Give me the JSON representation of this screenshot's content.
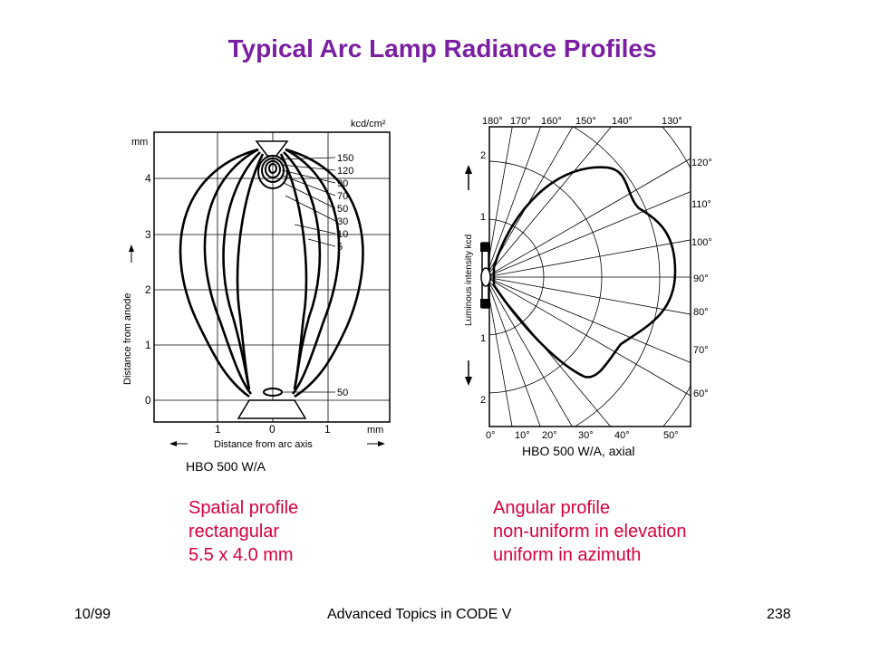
{
  "slide": {
    "title": "Typical Arc Lamp Radiance Profiles"
  },
  "spatial_figure": {
    "units_label": "kcd/cm²",
    "y_unit": "mm",
    "y_ticks": [
      "4",
      "3",
      "2",
      "1",
      "0"
    ],
    "y_label": "Distance from anode",
    "x_ticks": [
      "1",
      "0",
      "1"
    ],
    "x_unit": "mm",
    "x_label": "Distance from arc axis",
    "contour_labels": [
      "150",
      "120",
      "90",
      "70",
      "50",
      "30",
      "10",
      "5"
    ],
    "bottom_contour_label": "50",
    "caption": "HBO 500 W/A"
  },
  "angular_figure": {
    "top_angles": [
      "180°",
      "170°",
      "160°",
      "150°",
      "140°",
      "130°"
    ],
    "right_angles": [
      "120°",
      "110°",
      "100°",
      "90°",
      "80°",
      "70°",
      "60°"
    ],
    "bottom_angles": [
      "0°",
      "10°",
      "20°",
      "30°",
      "40°",
      "50°"
    ],
    "left_ticks": [
      "2",
      "1",
      "1",
      "2"
    ],
    "y_label": "Luminous intensity kcd",
    "caption": "HBO 500 W/A, axial"
  },
  "captions": {
    "left": [
      "Spatial profile",
      "rectangular",
      "5.5 x 4.0 mm"
    ],
    "right": [
      "Angular profile",
      "non-uniform in elevation",
      "uniform in azimuth"
    ]
  },
  "footer": {
    "date": "10/99",
    "center": "Advanced Topics in CODE V",
    "page": "238"
  },
  "colors": {
    "title": "#7b1fa2",
    "caption": "#d6003c"
  }
}
